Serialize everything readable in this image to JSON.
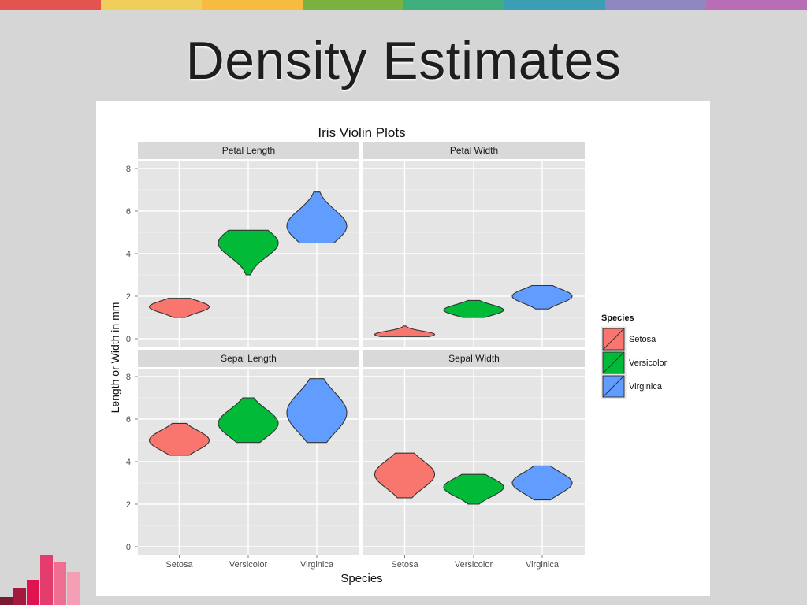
{
  "slide": {
    "title": "Density Estimates",
    "top_bar_colors": [
      "#e3534f",
      "#efce5c",
      "#f7bb41",
      "#7bb23f",
      "#3fb07d",
      "#3c9eb5",
      "#8f87c0",
      "#b86eb5"
    ],
    "corner_bar_colors": [
      "#7a1b34",
      "#a31a3e",
      "#e0124f",
      "#e53c6e",
      "#ef6f93",
      "#f59fb5"
    ]
  },
  "chart_data": {
    "type": "violin",
    "title": "Iris Violin Plots",
    "xlabel": "Species",
    "ylabel": "Length or Width in mm",
    "ylim": [
      0,
      8
    ],
    "y_ticks": [
      0,
      2,
      4,
      6,
      8
    ],
    "categories": [
      "Setosa",
      "Versicolor",
      "Virginica"
    ],
    "legend": {
      "title": "Species",
      "position": "right",
      "items": [
        {
          "label": "Setosa",
          "color": "#f8766d"
        },
        {
          "label": "Versicolor",
          "color": "#00ba38"
        },
        {
          "label": "Virginica",
          "color": "#619cff"
        }
      ]
    },
    "panels": [
      {
        "name": "Petal Length",
        "series": [
          {
            "species": "Setosa",
            "min": 1.0,
            "max": 1.9,
            "mode": 1.5
          },
          {
            "species": "Versicolor",
            "min": 3.0,
            "max": 5.1,
            "mode": 4.5
          },
          {
            "species": "Virginica",
            "min": 4.5,
            "max": 6.9,
            "mode": 5.3
          }
        ]
      },
      {
        "name": "Petal Width",
        "series": [
          {
            "species": "Setosa",
            "min": 0.1,
            "max": 0.6,
            "mode": 0.2
          },
          {
            "species": "Versicolor",
            "min": 1.0,
            "max": 1.8,
            "mode": 1.35
          },
          {
            "species": "Virginica",
            "min": 1.4,
            "max": 2.5,
            "mode": 2.0
          }
        ]
      },
      {
        "name": "Sepal Length",
        "series": [
          {
            "species": "Setosa",
            "min": 4.3,
            "max": 5.8,
            "mode": 5.0
          },
          {
            "species": "Versicolor",
            "min": 4.9,
            "max": 7.0,
            "mode": 5.8
          },
          {
            "species": "Virginica",
            "min": 4.9,
            "max": 7.9,
            "mode": 6.3
          }
        ]
      },
      {
        "name": "Sepal Width",
        "series": [
          {
            "species": "Setosa",
            "min": 2.3,
            "max": 4.4,
            "mode": 3.4
          },
          {
            "species": "Versicolor",
            "min": 2.0,
            "max": 3.4,
            "mode": 2.8
          },
          {
            "species": "Virginica",
            "min": 2.2,
            "max": 3.8,
            "mode": 3.0
          }
        ]
      }
    ]
  }
}
